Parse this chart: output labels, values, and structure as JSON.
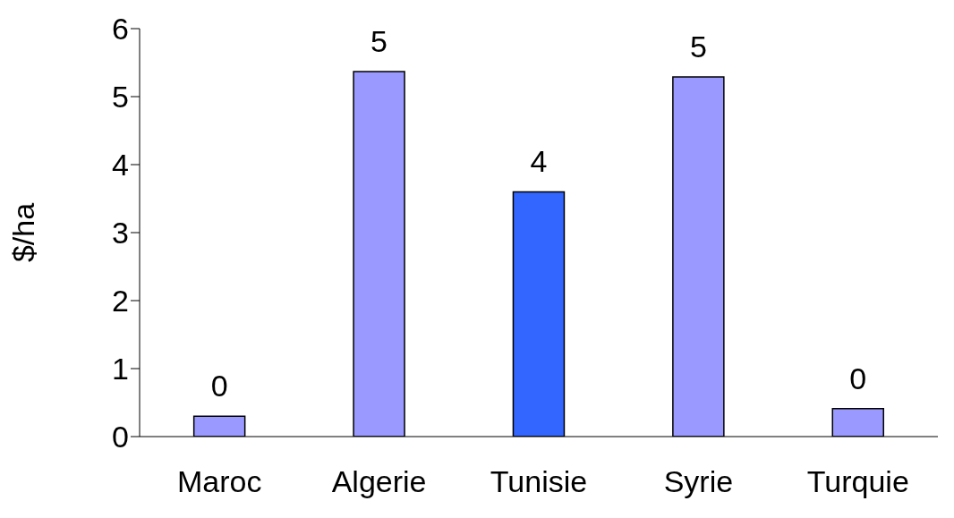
{
  "chart_data": {
    "type": "bar",
    "ylabel": "$/ha",
    "categories": [
      "Maroc",
      "Algerie",
      "Tunisie",
      "Syrie",
      "Turquie"
    ],
    "values": [
      0.3,
      5.37,
      3.6,
      5.29,
      0.41
    ],
    "colors": [
      "#9999ff",
      "#9999ff",
      "#3366ff",
      "#9999ff",
      "#9999ff"
    ],
    "value_labels": [
      "0",
      "5",
      "4",
      "5",
      "0"
    ],
    "ylim": [
      0,
      6
    ],
    "yticks": [
      0,
      1,
      2,
      3,
      4,
      5,
      6
    ],
    "grid": false
  }
}
